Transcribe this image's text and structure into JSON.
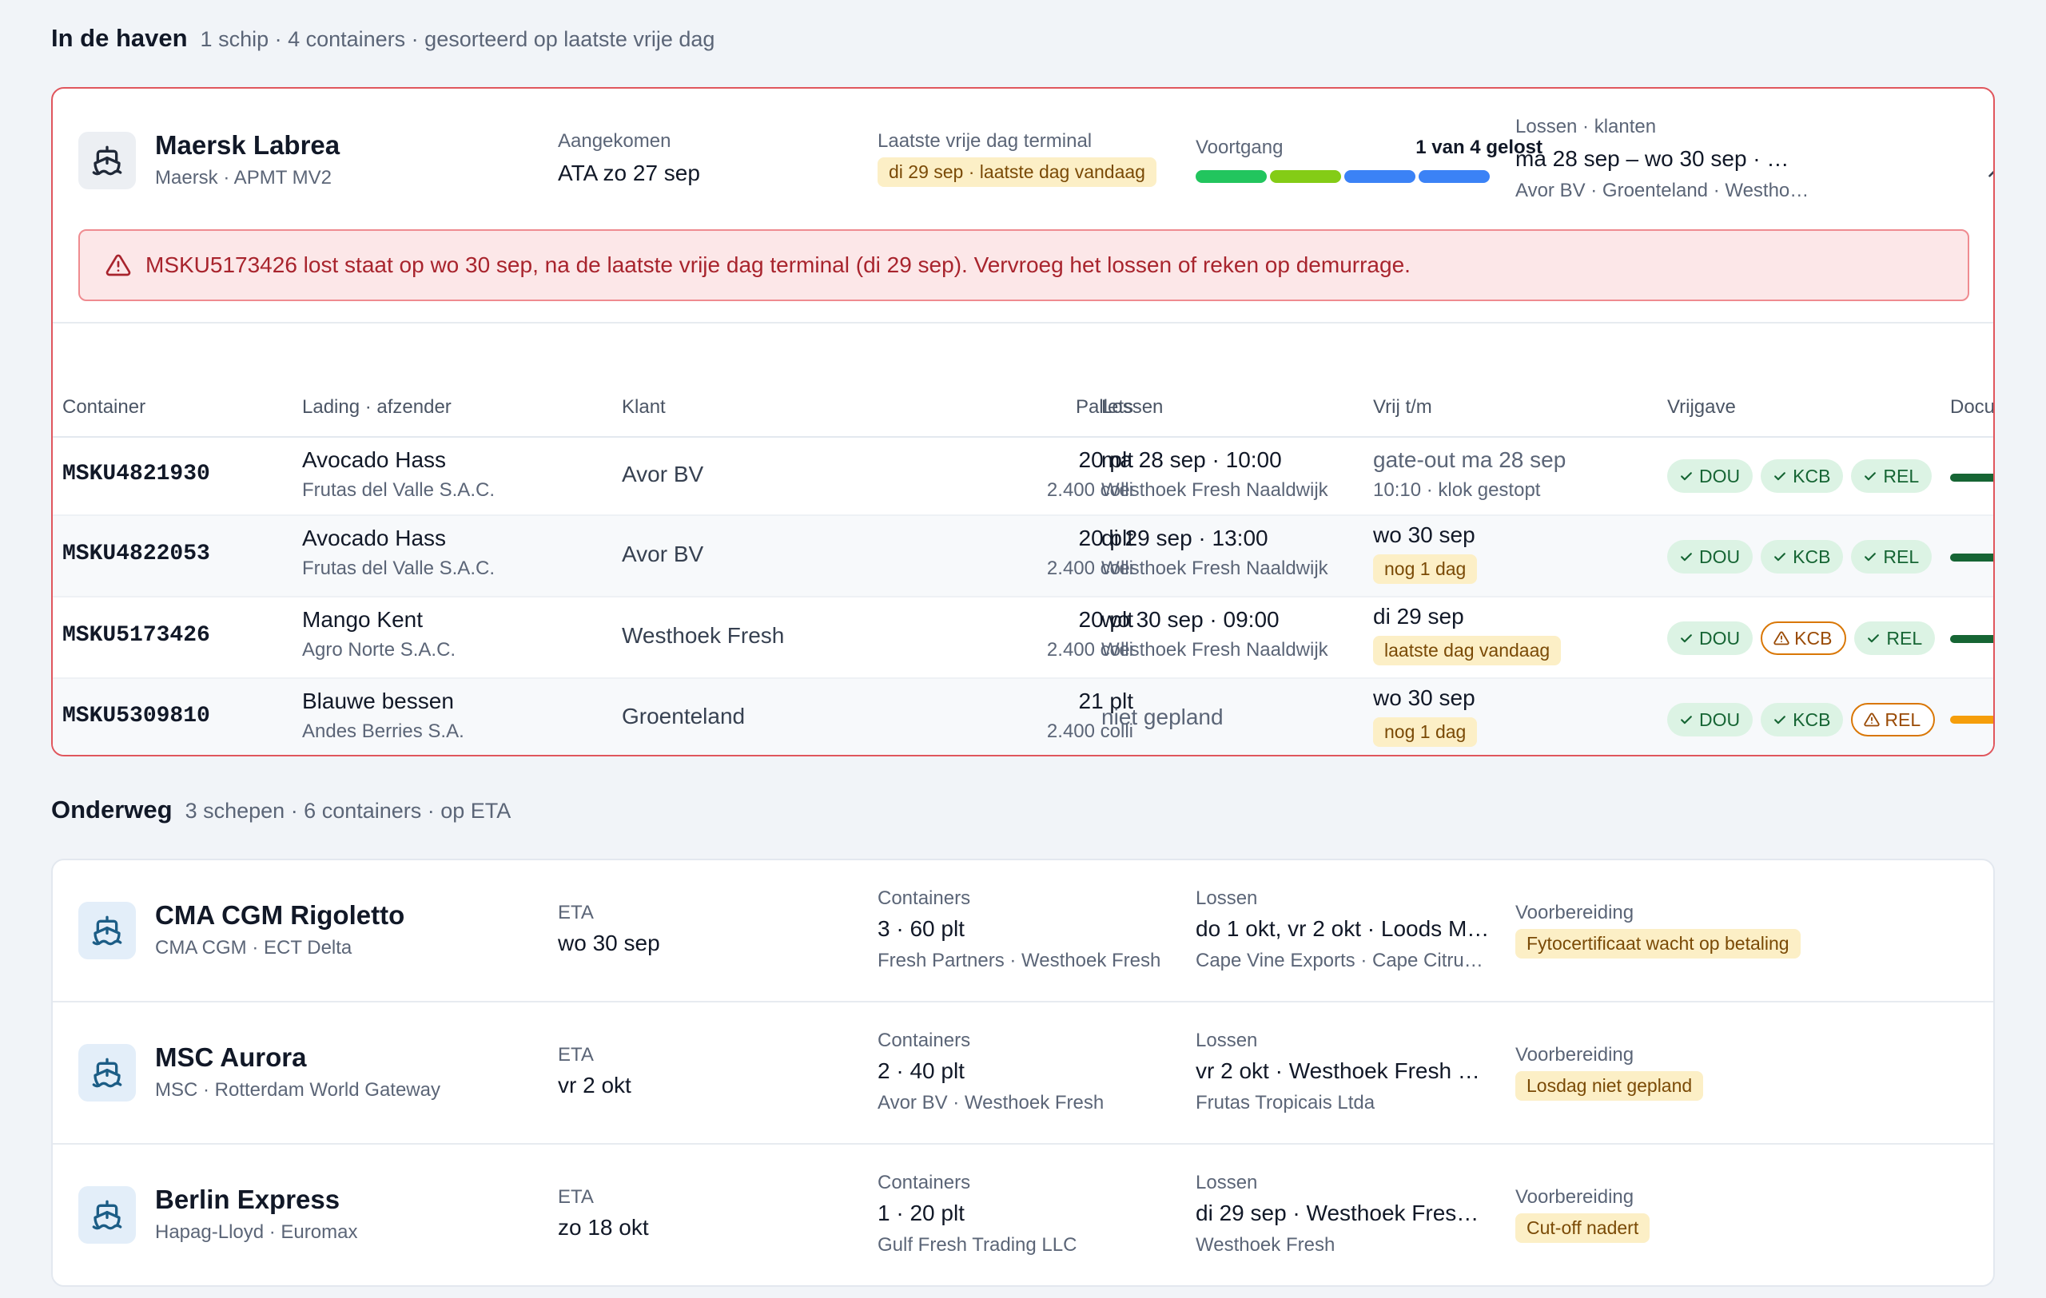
{
  "port_section": {
    "title": "In de haven",
    "subtitle": "1 schip · 4 containers · gesorteerd op laatste vrije dag"
  },
  "port_ship": {
    "name": "Maersk Labrea",
    "meta": "Maersk · APMT MV2",
    "arrived_label": "Aangekomen",
    "arrived_value": "ATA zo 27 sep",
    "lfd_label": "Laatste vrije dag terminal",
    "lfd_value": "di 29 sep · laatste dag vandaag",
    "progress_label": "Voortgang",
    "progress_value": "1 van 4 gelost",
    "progress_segments": [
      {
        "color": "#22c55e"
      },
      {
        "color": "#84cc16"
      },
      {
        "color": "#3b82f6"
      },
      {
        "color": "#3b82f6"
      }
    ],
    "unload_label": "Lossen · klanten",
    "unload_value": "ma 28 sep – wo 30 sep · …",
    "unload_clients": "Avor BV · Groenteland · Westho…",
    "collapse_icon": "chevron-up-icon"
  },
  "alert": {
    "icon": "warning-triangle-icon",
    "text": "MSKU5173426 lost staat op wo 30 sep, na de laatste vrije dag terminal (di 29 sep). Vervroeg het lossen of reken op demurrage."
  },
  "table": {
    "headers": {
      "container": "Container",
      "cargo": "Lading · afzender",
      "client": "Klant",
      "pallets": "Pallets",
      "unload": "Lossen",
      "free_until": "Vrij t/m",
      "release": "Vrijgave",
      "docs": "Docu"
    },
    "rows": [
      {
        "container": "MSKU4821930",
        "cargo": "Avocado Hass",
        "shipper": "Frutas del Valle S.A.C.",
        "client": "Avor BV",
        "pallets": "20 plt",
        "colli": "2.400 colli",
        "unload": "ma 28 sep · 10:00",
        "unload_loc": "Westhoek Fresh Naaldwijk",
        "free": "gate-out ma 28 sep",
        "free_sub": "10:10 · klok gestopt",
        "badges": [
          {
            "label": "DOU",
            "status": "ok"
          },
          {
            "label": "KCB",
            "status": "ok"
          },
          {
            "label": "REL",
            "status": "ok"
          }
        ],
        "doc_color": "#166534"
      },
      {
        "container": "MSKU4822053",
        "cargo": "Avocado Hass",
        "shipper": "Frutas del Valle S.A.C.",
        "client": "Avor BV",
        "pallets": "20 plt",
        "colli": "2.400 colli",
        "unload": "di 29 sep · 13:00",
        "unload_loc": "Westhoek Fresh Naaldwijk",
        "free": "wo 30 sep",
        "free_pill": "nog 1 dag",
        "badges": [
          {
            "label": "DOU",
            "status": "ok"
          },
          {
            "label": "KCB",
            "status": "ok"
          },
          {
            "label": "REL",
            "status": "ok"
          }
        ],
        "doc_color": "#166534"
      },
      {
        "container": "MSKU5173426",
        "cargo": "Mango Kent",
        "shipper": "Agro Norte S.A.C.",
        "client": "Westhoek Fresh",
        "pallets": "20 plt",
        "colli": "2.400 colli",
        "unload": "wo 30 sep · 09:00",
        "unload_loc": "Westhoek Fresh Naaldwijk",
        "free": "di 29 sep",
        "free_pill": "laatste dag vandaag",
        "badges": [
          {
            "label": "DOU",
            "status": "ok"
          },
          {
            "label": "KCB",
            "status": "warn"
          },
          {
            "label": "REL",
            "status": "ok"
          }
        ],
        "doc_color": "#166534"
      },
      {
        "container": "MSKU5309810",
        "cargo": "Blauwe bessen",
        "shipper": "Andes Berries S.A.",
        "client": "Groenteland",
        "pallets": "21 plt",
        "colli": "2.400 colli",
        "unload_unplanned": "niet gepland",
        "free": "wo 30 sep",
        "free_pill": "nog 1 dag",
        "badges": [
          {
            "label": "DOU",
            "status": "ok"
          },
          {
            "label": "KCB",
            "status": "ok"
          },
          {
            "label": "REL",
            "status": "warn"
          }
        ],
        "doc_color": "#f59e0b"
      }
    ]
  },
  "transit_section": {
    "title": "Onderweg",
    "subtitle": "3 schepen · 6 containers · op ETA"
  },
  "transit_ships": [
    {
      "name": "CMA CGM Rigoletto",
      "meta": "CMA CGM · ECT Delta",
      "eta_label": "ETA",
      "eta": "wo 30 sep",
      "containers_label": "Containers",
      "containers": "3 · 60 plt",
      "containers_clients": "Fresh Partners · Westhoek Fresh",
      "unload_label": "Lossen",
      "unload": "do 1 okt, vr 2 okt · Loods M…",
      "unload_shippers": "Cape Vine Exports · Cape Citru…",
      "prep_label": "Voorbereiding",
      "prep": "Fytocertificaat wacht op betaling"
    },
    {
      "name": "MSC Aurora",
      "meta": "MSC · Rotterdam World Gateway",
      "eta_label": "ETA",
      "eta": "vr 2 okt",
      "containers_label": "Containers",
      "containers": "2 · 40 plt",
      "containers_clients": "Avor BV · Westhoek Fresh",
      "unload_label": "Lossen",
      "unload": "vr 2 okt · Westhoek Fresh …",
      "unload_shippers": "Frutas Tropicais Ltda",
      "prep_label": "Voorbereiding",
      "prep": "Losdag niet gepland"
    },
    {
      "name": "Berlin Express",
      "meta": "Hapag-Lloyd · Euromax",
      "eta_label": "ETA",
      "eta": "zo 18 okt",
      "containers_label": "Containers",
      "containers": "1 · 20 plt",
      "containers_clients": "Gulf Fresh Trading LLC",
      "unload_label": "Lossen",
      "unload": "di 29 sep · Westhoek Fres…",
      "unload_shippers": "Westhoek Fresh",
      "prep_label": "Voorbereiding",
      "prep": "Cut-off nadert"
    }
  ]
}
